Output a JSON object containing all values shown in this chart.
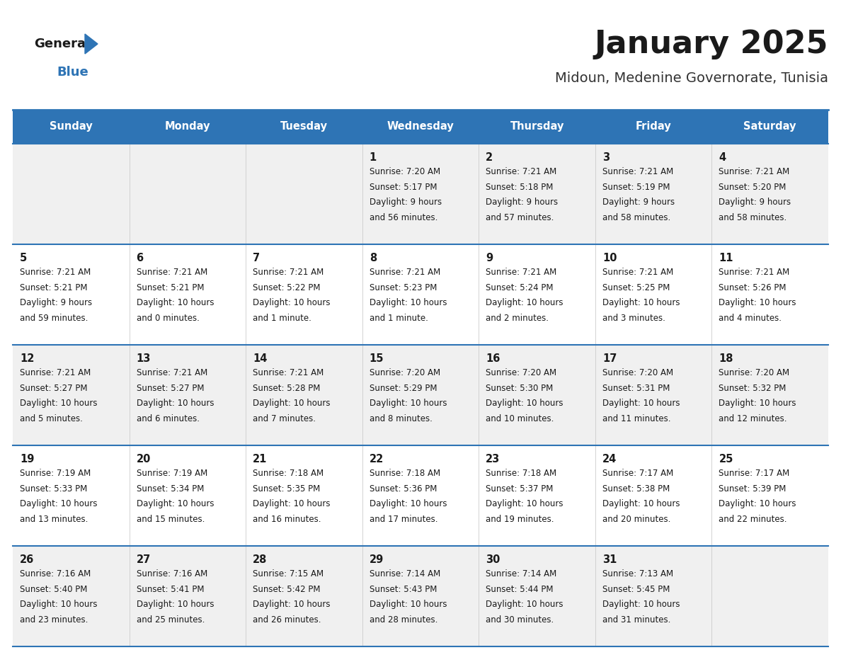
{
  "title": "January 2025",
  "subtitle": "Midoun, Medenine Governorate, Tunisia",
  "header_bg": "#2E74B5",
  "header_text_color": "#FFFFFF",
  "day_names": [
    "Sunday",
    "Monday",
    "Tuesday",
    "Wednesday",
    "Thursday",
    "Friday",
    "Saturday"
  ],
  "row_bg_even": "#F0F0F0",
  "row_bg_odd": "#FFFFFF",
  "grid_line_color": "#2E74B5",
  "title_color": "#1A1A1A",
  "subtitle_color": "#333333",
  "cell_text_color": "#1A1A1A",
  "logo_general_color": "#1A1A1A",
  "logo_blue_color": "#2E74B5",
  "calendar": [
    [
      null,
      null,
      null,
      {
        "day": 1,
        "sunrise": "7:20 AM",
        "sunset": "5:17 PM",
        "daylight_line1": "Daylight: 9 hours",
        "daylight_line2": "and 56 minutes."
      },
      {
        "day": 2,
        "sunrise": "7:21 AM",
        "sunset": "5:18 PM",
        "daylight_line1": "Daylight: 9 hours",
        "daylight_line2": "and 57 minutes."
      },
      {
        "day": 3,
        "sunrise": "7:21 AM",
        "sunset": "5:19 PM",
        "daylight_line1": "Daylight: 9 hours",
        "daylight_line2": "and 58 minutes."
      },
      {
        "day": 4,
        "sunrise": "7:21 AM",
        "sunset": "5:20 PM",
        "daylight_line1": "Daylight: 9 hours",
        "daylight_line2": "and 58 minutes."
      }
    ],
    [
      {
        "day": 5,
        "sunrise": "7:21 AM",
        "sunset": "5:21 PM",
        "daylight_line1": "Daylight: 9 hours",
        "daylight_line2": "and 59 minutes."
      },
      {
        "day": 6,
        "sunrise": "7:21 AM",
        "sunset": "5:21 PM",
        "daylight_line1": "Daylight: 10 hours",
        "daylight_line2": "and 0 minutes."
      },
      {
        "day": 7,
        "sunrise": "7:21 AM",
        "sunset": "5:22 PM",
        "daylight_line1": "Daylight: 10 hours",
        "daylight_line2": "and 1 minute."
      },
      {
        "day": 8,
        "sunrise": "7:21 AM",
        "sunset": "5:23 PM",
        "daylight_line1": "Daylight: 10 hours",
        "daylight_line2": "and 1 minute."
      },
      {
        "day": 9,
        "sunrise": "7:21 AM",
        "sunset": "5:24 PM",
        "daylight_line1": "Daylight: 10 hours",
        "daylight_line2": "and 2 minutes."
      },
      {
        "day": 10,
        "sunrise": "7:21 AM",
        "sunset": "5:25 PM",
        "daylight_line1": "Daylight: 10 hours",
        "daylight_line2": "and 3 minutes."
      },
      {
        "day": 11,
        "sunrise": "7:21 AM",
        "sunset": "5:26 PM",
        "daylight_line1": "Daylight: 10 hours",
        "daylight_line2": "and 4 minutes."
      }
    ],
    [
      {
        "day": 12,
        "sunrise": "7:21 AM",
        "sunset": "5:27 PM",
        "daylight_line1": "Daylight: 10 hours",
        "daylight_line2": "and 5 minutes."
      },
      {
        "day": 13,
        "sunrise": "7:21 AM",
        "sunset": "5:27 PM",
        "daylight_line1": "Daylight: 10 hours",
        "daylight_line2": "and 6 minutes."
      },
      {
        "day": 14,
        "sunrise": "7:21 AM",
        "sunset": "5:28 PM",
        "daylight_line1": "Daylight: 10 hours",
        "daylight_line2": "and 7 minutes."
      },
      {
        "day": 15,
        "sunrise": "7:20 AM",
        "sunset": "5:29 PM",
        "daylight_line1": "Daylight: 10 hours",
        "daylight_line2": "and 8 minutes."
      },
      {
        "day": 16,
        "sunrise": "7:20 AM",
        "sunset": "5:30 PM",
        "daylight_line1": "Daylight: 10 hours",
        "daylight_line2": "and 10 minutes."
      },
      {
        "day": 17,
        "sunrise": "7:20 AM",
        "sunset": "5:31 PM",
        "daylight_line1": "Daylight: 10 hours",
        "daylight_line2": "and 11 minutes."
      },
      {
        "day": 18,
        "sunrise": "7:20 AM",
        "sunset": "5:32 PM",
        "daylight_line1": "Daylight: 10 hours",
        "daylight_line2": "and 12 minutes."
      }
    ],
    [
      {
        "day": 19,
        "sunrise": "7:19 AM",
        "sunset": "5:33 PM",
        "daylight_line1": "Daylight: 10 hours",
        "daylight_line2": "and 13 minutes."
      },
      {
        "day": 20,
        "sunrise": "7:19 AM",
        "sunset": "5:34 PM",
        "daylight_line1": "Daylight: 10 hours",
        "daylight_line2": "and 15 minutes."
      },
      {
        "day": 21,
        "sunrise": "7:18 AM",
        "sunset": "5:35 PM",
        "daylight_line1": "Daylight: 10 hours",
        "daylight_line2": "and 16 minutes."
      },
      {
        "day": 22,
        "sunrise": "7:18 AM",
        "sunset": "5:36 PM",
        "daylight_line1": "Daylight: 10 hours",
        "daylight_line2": "and 17 minutes."
      },
      {
        "day": 23,
        "sunrise": "7:18 AM",
        "sunset": "5:37 PM",
        "daylight_line1": "Daylight: 10 hours",
        "daylight_line2": "and 19 minutes."
      },
      {
        "day": 24,
        "sunrise": "7:17 AM",
        "sunset": "5:38 PM",
        "daylight_line1": "Daylight: 10 hours",
        "daylight_line2": "and 20 minutes."
      },
      {
        "day": 25,
        "sunrise": "7:17 AM",
        "sunset": "5:39 PM",
        "daylight_line1": "Daylight: 10 hours",
        "daylight_line2": "and 22 minutes."
      }
    ],
    [
      {
        "day": 26,
        "sunrise": "7:16 AM",
        "sunset": "5:40 PM",
        "daylight_line1": "Daylight: 10 hours",
        "daylight_line2": "and 23 minutes."
      },
      {
        "day": 27,
        "sunrise": "7:16 AM",
        "sunset": "5:41 PM",
        "daylight_line1": "Daylight: 10 hours",
        "daylight_line2": "and 25 minutes."
      },
      {
        "day": 28,
        "sunrise": "7:15 AM",
        "sunset": "5:42 PM",
        "daylight_line1": "Daylight: 10 hours",
        "daylight_line2": "and 26 minutes."
      },
      {
        "day": 29,
        "sunrise": "7:14 AM",
        "sunset": "5:43 PM",
        "daylight_line1": "Daylight: 10 hours",
        "daylight_line2": "and 28 minutes."
      },
      {
        "day": 30,
        "sunrise": "7:14 AM",
        "sunset": "5:44 PM",
        "daylight_line1": "Daylight: 10 hours",
        "daylight_line2": "and 30 minutes."
      },
      {
        "day": 31,
        "sunrise": "7:13 AM",
        "sunset": "5:45 PM",
        "daylight_line1": "Daylight: 10 hours",
        "daylight_line2": "and 31 minutes."
      },
      null
    ]
  ],
  "fig_width": 11.88,
  "fig_height": 9.18,
  "dpi": 100
}
